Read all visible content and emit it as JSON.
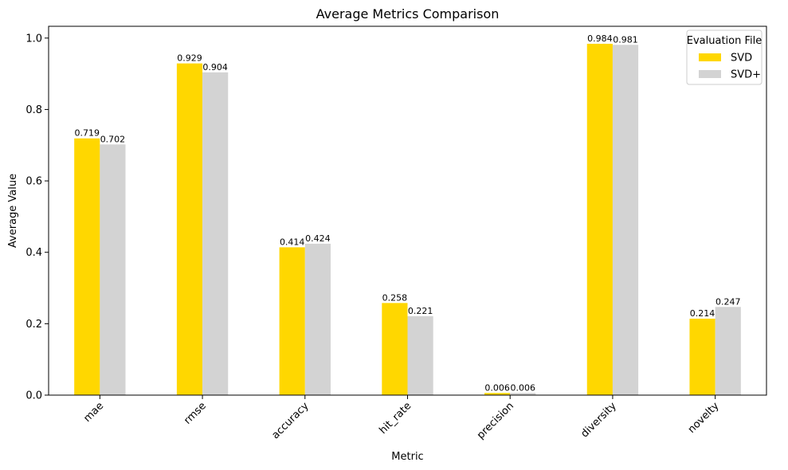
{
  "chart_data": {
    "type": "bar",
    "title": "Average Metrics Comparison",
    "xlabel": "Metric",
    "ylabel": "Average Value",
    "categories": [
      "mae",
      "rmse",
      "accuracy",
      "hit_rate",
      "precision",
      "diversity",
      "novelty"
    ],
    "series": [
      {
        "name": "SVD",
        "color": "#FFD700",
        "values": [
          0.719,
          0.929,
          0.414,
          0.258,
          0.006,
          0.984,
          0.214
        ],
        "labels": [
          "0.719",
          "0.929",
          "0.414",
          "0.258",
          "0.006",
          "0.984",
          "0.214"
        ]
      },
      {
        "name": "SVD+",
        "color": "#D3D3D3",
        "values": [
          0.702,
          0.904,
          0.424,
          0.221,
          0.006,
          0.981,
          0.247
        ],
        "labels": [
          "0.702",
          "0.904",
          "0.424",
          "0.221",
          "0.006",
          "0.981",
          "0.247"
        ]
      }
    ],
    "ylim": [
      0,
      1.033
    ],
    "yticks": [
      0.0,
      0.2,
      0.4,
      0.6,
      0.8,
      1.0
    ],
    "ytick_labels": [
      "0.0",
      "0.2",
      "0.4",
      "0.6",
      "0.8",
      "1.0"
    ],
    "xtick_rotation": 45,
    "grid": false,
    "legend": {
      "title": "Evaluation File",
      "placement": "top-right"
    }
  }
}
